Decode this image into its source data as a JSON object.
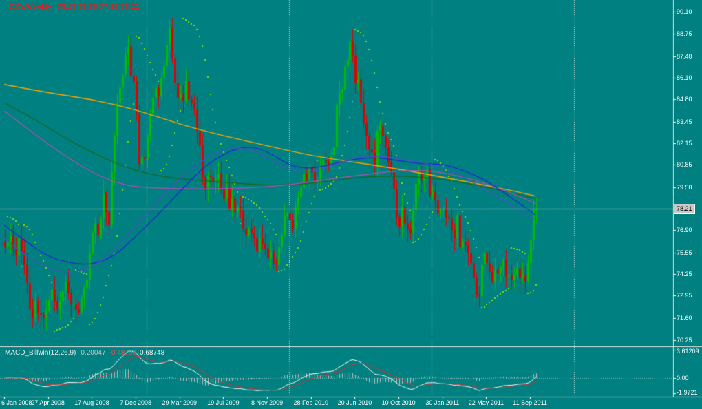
{
  "colors": {
    "background": "#008080",
    "bull": "#00BE00",
    "bear": "#E10000",
    "sar": "#80E000",
    "grid": "rgba(255,255,255,0.8)",
    "separator": "#E4E4E4",
    "price_line": "#C0C0C0",
    "axis_text": "#FFFFFF",
    "symbol_text": "#C82828",
    "price_box_bg": "#C8C8C8",
    "price_box_text": "#000000"
  },
  "header": {
    "symbol": "_DXY,Weekly",
    "ohlc": "78.13 78.86 77.31 78.21"
  },
  "indicator": {
    "name": "MACD_Billwin(12,26,9)",
    "values": [
      "0.20047",
      "-0.48708",
      "0.68748"
    ]
  },
  "price_axis": {
    "ticks": [
      "90.10",
      "88.75",
      "87.40",
      "86.10",
      "84.80",
      "83.45",
      "82.15",
      "80.85",
      "79.50",
      "76.90",
      "75.55",
      "74.25",
      "72.95",
      "71.60",
      "70.25"
    ],
    "current": "78.21"
  },
  "macd_axis": {
    "labels": [
      "3.61209",
      "0.00",
      "-1.9721"
    ]
  },
  "chart_data": {
    "type": "candlestick",
    "title": "_DXY,Weekly",
    "timeframe": "Weekly",
    "ylim_main": [
      70.25,
      90.1
    ],
    "ylim_macd": [
      -2.4,
      3.9
    ],
    "current_bar": {
      "open": 78.13,
      "high": 78.86,
      "low": 77.31,
      "close": 78.21
    },
    "first_open": 76.2,
    "closes": [
      75.9,
      76.2,
      76.6,
      75.8,
      75.4,
      76.4,
      75.6,
      74.8,
      73.7,
      72.1,
      71.6,
      72.6,
      71.9,
      71.8,
      71.6,
      72.0,
      72.7,
      73.3,
      72.6,
      72.1,
      72.6,
      73.2,
      73.8,
      73.1,
      72.4,
      72.4,
      72.1,
      71.9,
      72.8,
      73.4,
      73.9,
      75.5,
      76.7,
      77.3,
      76.6,
      77.6,
      79.1,
      78.0,
      77.2,
      80.4,
      82.6,
      84.6,
      85.5,
      86.3,
      87.5,
      88.0,
      86.2,
      85.9,
      83.9,
      80.9,
      81.3,
      81.2,
      82.6,
      83.9,
      84.9,
      85.5,
      85.0,
      86.1,
      86.8,
      88.1,
      89.1,
      87.3,
      85.8,
      84.9,
      85.1,
      84.7,
      85.9,
      84.8,
      84.6,
      84.2,
      82.9,
      82.0,
      80.1,
      79.4,
      80.2,
      80.1,
      79.8,
      80.0,
      80.3,
      79.4,
      78.8,
      79.5,
      78.2,
      78.8,
      78.0,
      78.3,
      78.1,
      77.0,
      76.6,
      77.0,
      76.7,
      76.4,
      75.6,
      76.4,
      76.1,
      75.8,
      75.2,
      75.6,
      74.9,
      74.8,
      75.9,
      76.6,
      77.8,
      77.9,
      77.5,
      77.0,
      78.3,
      78.9,
      79.5,
      80.3,
      80.0,
      80.7,
      80.4,
      79.8,
      79.9,
      80.8,
      81.1,
      81.0,
      80.8,
      81.4,
      81.9,
      84.5,
      85.2,
      85.4,
      86.8,
      87.2,
      88.3,
      87.4,
      85.8,
      86.0,
      84.6,
      83.4,
      82.6,
      81.8,
      81.6,
      80.8,
      82.9,
      83.2,
      82.6,
      81.9,
      81.0,
      80.4,
      79.4,
      77.7,
      77.1,
      78.3,
      77.3,
      77.0,
      76.7,
      78.1,
      79.7,
      80.4,
      79.9,
      80.1,
      80.6,
      79.0,
      79.2,
      78.7,
      77.9,
      78.1,
      78.2,
      77.7,
      77.6,
      76.9,
      76.4,
      77.8,
      75.9,
      76.2,
      76.0,
      75.5,
      74.9,
      74.0,
      73.0,
      72.9,
      74.8,
      75.5,
      74.9,
      74.4,
      73.8,
      74.5,
      74.3,
      74.6,
      75.1,
      74.1,
      74.2,
      73.9,
      74.2,
      74.6,
      74.0,
      74.2,
      73.8,
      74.9,
      76.3,
      78.13,
      78.21
    ],
    "x_labels": [
      {
        "text": "6 Jan 2008",
        "i": 0
      },
      {
        "text": "27 Apr 2008",
        "i": 16
      },
      {
        "text": "17 Aug 2008",
        "i": 32
      },
      {
        "text": "7 Dec 2008",
        "i": 48
      },
      {
        "text": "29 Mar 2009",
        "i": 64
      },
      {
        "text": "19 Jul 2009",
        "i": 80
      },
      {
        "text": "8 Nov 2009",
        "i": 96
      },
      {
        "text": "28 Feb 2010",
        "i": 112
      },
      {
        "text": "20 Jun 2010",
        "i": 128
      },
      {
        "text": "10 Oct 2010",
        "i": 144
      },
      {
        "text": "30 Jan 2011",
        "i": 160
      },
      {
        "text": "22 May 2011",
        "i": 176
      },
      {
        "text": "11 Sep 2011",
        "i": 192
      }
    ],
    "year_separators": [
      52,
      104,
      156,
      208
    ],
    "overlays": [
      {
        "name": "ma-yellow",
        "color": "#FFA500",
        "width": 1.4,
        "points": [
          [
            0,
            85.7
          ],
          [
            16,
            85.2
          ],
          [
            32,
            84.8
          ],
          [
            48,
            84.2
          ],
          [
            64,
            83.3
          ],
          [
            80,
            82.6
          ],
          [
            96,
            82.0
          ],
          [
            112,
            81.4
          ],
          [
            128,
            81.0
          ],
          [
            144,
            80.6
          ],
          [
            160,
            80.1
          ],
          [
            176,
            79.6
          ],
          [
            188,
            79.2
          ],
          [
            194,
            78.95
          ]
        ]
      },
      {
        "name": "ma-darkgreen",
        "color": "#1A661A",
        "width": 1.2,
        "points": [
          [
            0,
            84.6
          ],
          [
            8,
            83.9
          ],
          [
            16,
            83.1
          ],
          [
            24,
            82.3
          ],
          [
            32,
            81.6
          ],
          [
            40,
            81.0
          ],
          [
            48,
            80.5
          ],
          [
            56,
            80.2
          ],
          [
            64,
            80.0
          ],
          [
            80,
            79.8
          ],
          [
            96,
            79.6
          ],
          [
            112,
            79.7
          ],
          [
            128,
            80.1
          ],
          [
            144,
            80.2
          ],
          [
            160,
            80.0
          ],
          [
            176,
            79.5
          ],
          [
            186,
            79.1
          ],
          [
            194,
            78.8
          ]
        ]
      },
      {
        "name": "ma-purple",
        "color": "#B050B0",
        "width": 1.2,
        "points": [
          [
            0,
            84.1
          ],
          [
            8,
            83.1
          ],
          [
            16,
            82.1
          ],
          [
            24,
            81.2
          ],
          [
            32,
            80.4
          ],
          [
            40,
            79.8
          ],
          [
            48,
            79.5
          ],
          [
            64,
            79.4
          ],
          [
            80,
            79.4
          ],
          [
            96,
            79.5
          ],
          [
            112,
            79.8
          ],
          [
            128,
            80.2
          ],
          [
            144,
            80.5
          ],
          [
            156,
            80.5
          ],
          [
            168,
            80.1
          ],
          [
            176,
            79.7
          ],
          [
            186,
            79.1
          ],
          [
            194,
            78.5
          ]
        ]
      },
      {
        "name": "ma-blue-fast",
        "color": "#2222DD",
        "width": 1.2,
        "points": [
          [
            0,
            77.2
          ],
          [
            8,
            76.2
          ],
          [
            16,
            75.3
          ],
          [
            24,
            74.9
          ],
          [
            32,
            74.8
          ],
          [
            40,
            75.3
          ],
          [
            48,
            76.5
          ],
          [
            56,
            77.8
          ],
          [
            64,
            79.2
          ],
          [
            72,
            80.6
          ],
          [
            80,
            81.5
          ],
          [
            88,
            82.0
          ],
          [
            96,
            81.7
          ],
          [
            104,
            80.8
          ],
          [
            112,
            80.6
          ],
          [
            120,
            80.9
          ],
          [
            128,
            81.2
          ],
          [
            136,
            81.3
          ],
          [
            144,
            81.1
          ],
          [
            152,
            80.9
          ],
          [
            160,
            80.9
          ],
          [
            168,
            80.5
          ],
          [
            176,
            79.9
          ],
          [
            184,
            79.0
          ],
          [
            190,
            78.3
          ],
          [
            194,
            77.8
          ]
        ]
      },
      {
        "name": "ma-blue-slow",
        "color": "#5050C8",
        "width": 1.2,
        "points": [
          [
            0,
            76.4
          ],
          [
            8,
            75.3
          ],
          [
            16,
            74.6
          ],
          [
            24,
            74.3
          ],
          [
            32,
            74.6
          ],
          [
            40,
            75.6
          ],
          [
            48,
            77.1
          ],
          [
            56,
            78.6
          ],
          [
            64,
            80.0
          ],
          [
            72,
            81.1
          ],
          [
            80,
            81.8
          ],
          [
            88,
            81.9
          ],
          [
            96,
            81.3
          ],
          [
            104,
            80.5
          ],
          [
            112,
            80.4
          ],
          [
            120,
            80.8
          ],
          [
            128,
            81.3
          ],
          [
            136,
            81.4
          ],
          [
            144,
            81.2
          ],
          [
            152,
            81.0
          ],
          [
            160,
            80.7
          ],
          [
            168,
            80.1
          ],
          [
            176,
            79.3
          ],
          [
            184,
            78.5
          ],
          [
            190,
            77.9
          ],
          [
            194,
            77.5
          ]
        ]
      }
    ],
    "sar": {
      "name": "parabolic-sar",
      "step": 0.02,
      "max": 0.2
    },
    "macd": {
      "fast": 12,
      "slow": 26,
      "signal": 9,
      "colors": {
        "histogram": "#C0C0C0",
        "macd": "#FFFFFF",
        "signal": "#E03030"
      }
    }
  }
}
